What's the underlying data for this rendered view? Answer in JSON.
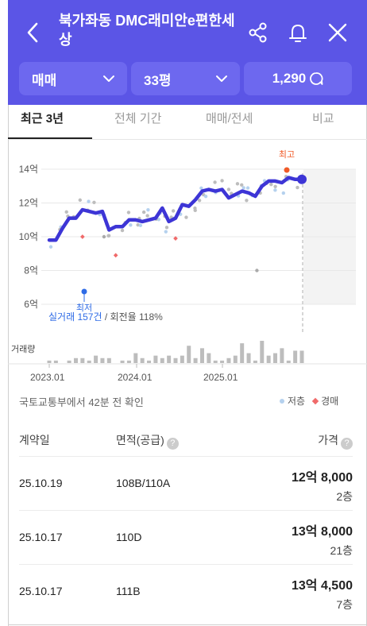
{
  "header": {
    "title": "북가좌동 DMC래미안e편한세상",
    "icons": [
      "back-arrow-icon",
      "share-icon",
      "bell-icon",
      "close-icon"
    ],
    "bg_color": "#5b55e6"
  },
  "filters": {
    "deal_type": "매매",
    "size": "33평",
    "count": "1,290"
  },
  "tabs": [
    {
      "label": "최근 3년",
      "active": true
    },
    {
      "label": "전체 기간",
      "active": false
    },
    {
      "label": "매매/전세",
      "active": false
    },
    {
      "label": "비교",
      "active": false
    }
  ],
  "chart_data": {
    "type": "line",
    "yaxis_unit": "억",
    "ylim": [
      6,
      14
    ],
    "y_ticks": [
      "14억",
      "12억",
      "10억",
      "8억",
      "6억"
    ],
    "x_ticks": [
      "2023.01",
      "2024.01",
      "2025.01"
    ],
    "max_label": "최고",
    "min_label": "최저",
    "stats_trades": "실거래 157건",
    "stats_sep": " / ",
    "stats_turnover": "회전율 118%",
    "volume_label": "거래량",
    "line_color": "#3d35d6",
    "series": [
      {
        "values": [
          9.8,
          9.8,
          10.5,
          11.1,
          11.1,
          11.6,
          11.5,
          11.4,
          11.5,
          10.4,
          10.6,
          10.6,
          11.0,
          11.0,
          10.9,
          11.0,
          11.1,
          11.7,
          10.9,
          11.1,
          11.9,
          11.8,
          12.2,
          12.7,
          12.8,
          12.7,
          12.8,
          12.3,
          12.5,
          12.7,
          12.6,
          12.4,
          13.0,
          13.3,
          13.3,
          13.2,
          13.5,
          13.4,
          13.4
        ]
      }
    ],
    "volume": [
      1,
      1,
      0,
      1,
      2,
      2,
      1,
      3,
      2,
      2,
      0,
      1,
      1,
      4,
      2,
      1,
      3,
      2,
      3,
      2,
      3,
      7,
      2,
      6,
      4,
      1,
      1,
      2,
      3,
      8,
      4,
      1,
      9,
      3,
      4,
      6,
      1,
      5,
      5
    ],
    "legend": [
      "저층",
      "경매"
    ]
  },
  "source_note": "국토교통부에서 42분 전 확인",
  "table": {
    "headers": [
      "계약일",
      "면적(공급)",
      "가격"
    ],
    "rows": [
      {
        "date": "25.10.19",
        "area": "108B/110A",
        "price": "12억 8,000",
        "floor": "2층"
      },
      {
        "date": "25.10.17",
        "area": "110D",
        "price": "13억 8,000",
        "floor": "21층"
      },
      {
        "date": "25.10.17",
        "area": "111B",
        "price": "13억 4,500",
        "floor": "7층"
      }
    ]
  }
}
